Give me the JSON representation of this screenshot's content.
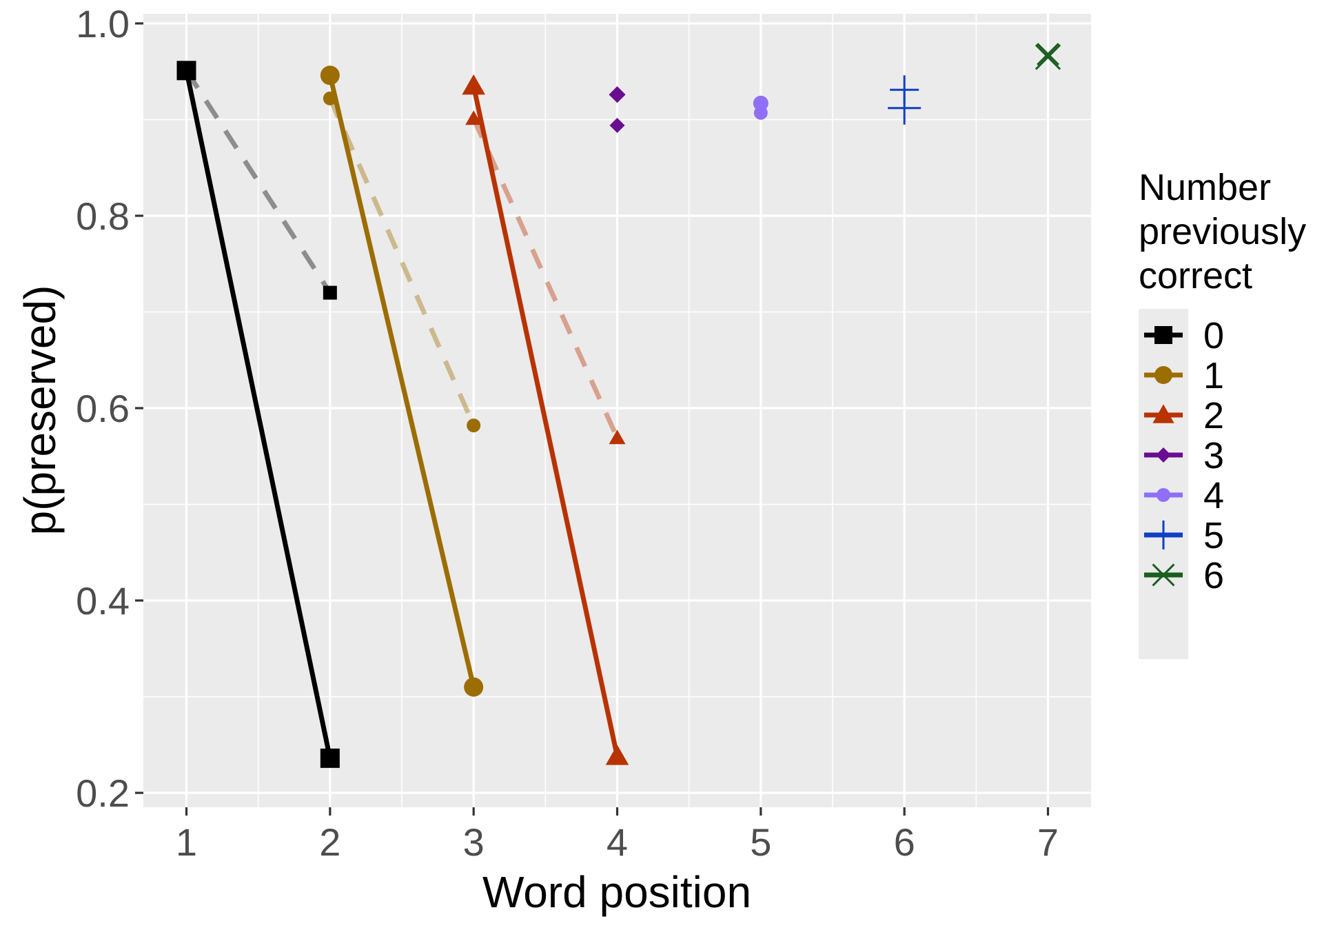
{
  "chart_data": {
    "type": "line",
    "xlabel": "Word position",
    "ylabel": "p(preserved)",
    "xlim": [
      0.7,
      7.3
    ],
    "ylim": [
      0.185,
      1.01
    ],
    "x_ticks": [
      1,
      2,
      3,
      4,
      5,
      6,
      7
    ],
    "y_ticks": [
      0.2,
      0.4,
      0.6,
      0.8,
      1.0
    ],
    "y_tick_labels": [
      "0.2",
      "0.4",
      "0.6",
      "0.8",
      "1.0"
    ],
    "grid": true,
    "panel_background": "#ebebeb",
    "legend": {
      "position": "right",
      "title_lines": [
        "Number",
        "previously",
        "correct"
      ]
    },
    "series": [
      {
        "name": "0",
        "color": "#000000",
        "shape": "square",
        "solid": [
          {
            "x": 1,
            "y": 0.951
          },
          {
            "x": 2,
            "y": 0.236
          }
        ],
        "dashed": [
          {
            "x": 1,
            "y": 0.951
          },
          {
            "x": 2,
            "y": 0.72
          }
        ]
      },
      {
        "name": "1",
        "color": "#9c6d00",
        "shape": "circle",
        "solid": [
          {
            "x": 2,
            "y": 0.946
          },
          {
            "x": 3,
            "y": 0.31
          }
        ],
        "dashed": [
          {
            "x": 2,
            "y": 0.922
          },
          {
            "x": 3,
            "y": 0.582
          }
        ]
      },
      {
        "name": "2",
        "color": "#b83300",
        "shape": "triangle",
        "solid": [
          {
            "x": 3,
            "y": 0.935
          },
          {
            "x": 4,
            "y": 0.238
          }
        ],
        "dashed": [
          {
            "x": 3,
            "y": 0.901
          },
          {
            "x": 4,
            "y": 0.569
          }
        ]
      },
      {
        "name": "3",
        "color": "#6a0d91",
        "shape": "diamond",
        "solid": [
          {
            "x": 4,
            "y": 0.926
          }
        ],
        "dashed": [
          {
            "x": 4,
            "y": 0.894
          }
        ]
      },
      {
        "name": "4",
        "color": "#8f6ff5",
        "shape": "circle",
        "solid": [
          {
            "x": 5,
            "y": 0.917
          }
        ],
        "dashed": [
          {
            "x": 5,
            "y": 0.907
          }
        ]
      },
      {
        "name": "5",
        "color": "#0f3fc4",
        "shape": "plus",
        "solid": [
          {
            "x": 6,
            "y": 0.912
          }
        ],
        "dashed": [
          {
            "x": 6,
            "y": 0.931
          }
        ]
      },
      {
        "name": "6",
        "color": "#1b5e20",
        "shape": "cross",
        "solid": [
          {
            "x": 7,
            "y": 0.965
          }
        ],
        "dashed": [
          {
            "x": 7,
            "y": 0.968
          }
        ]
      }
    ]
  }
}
